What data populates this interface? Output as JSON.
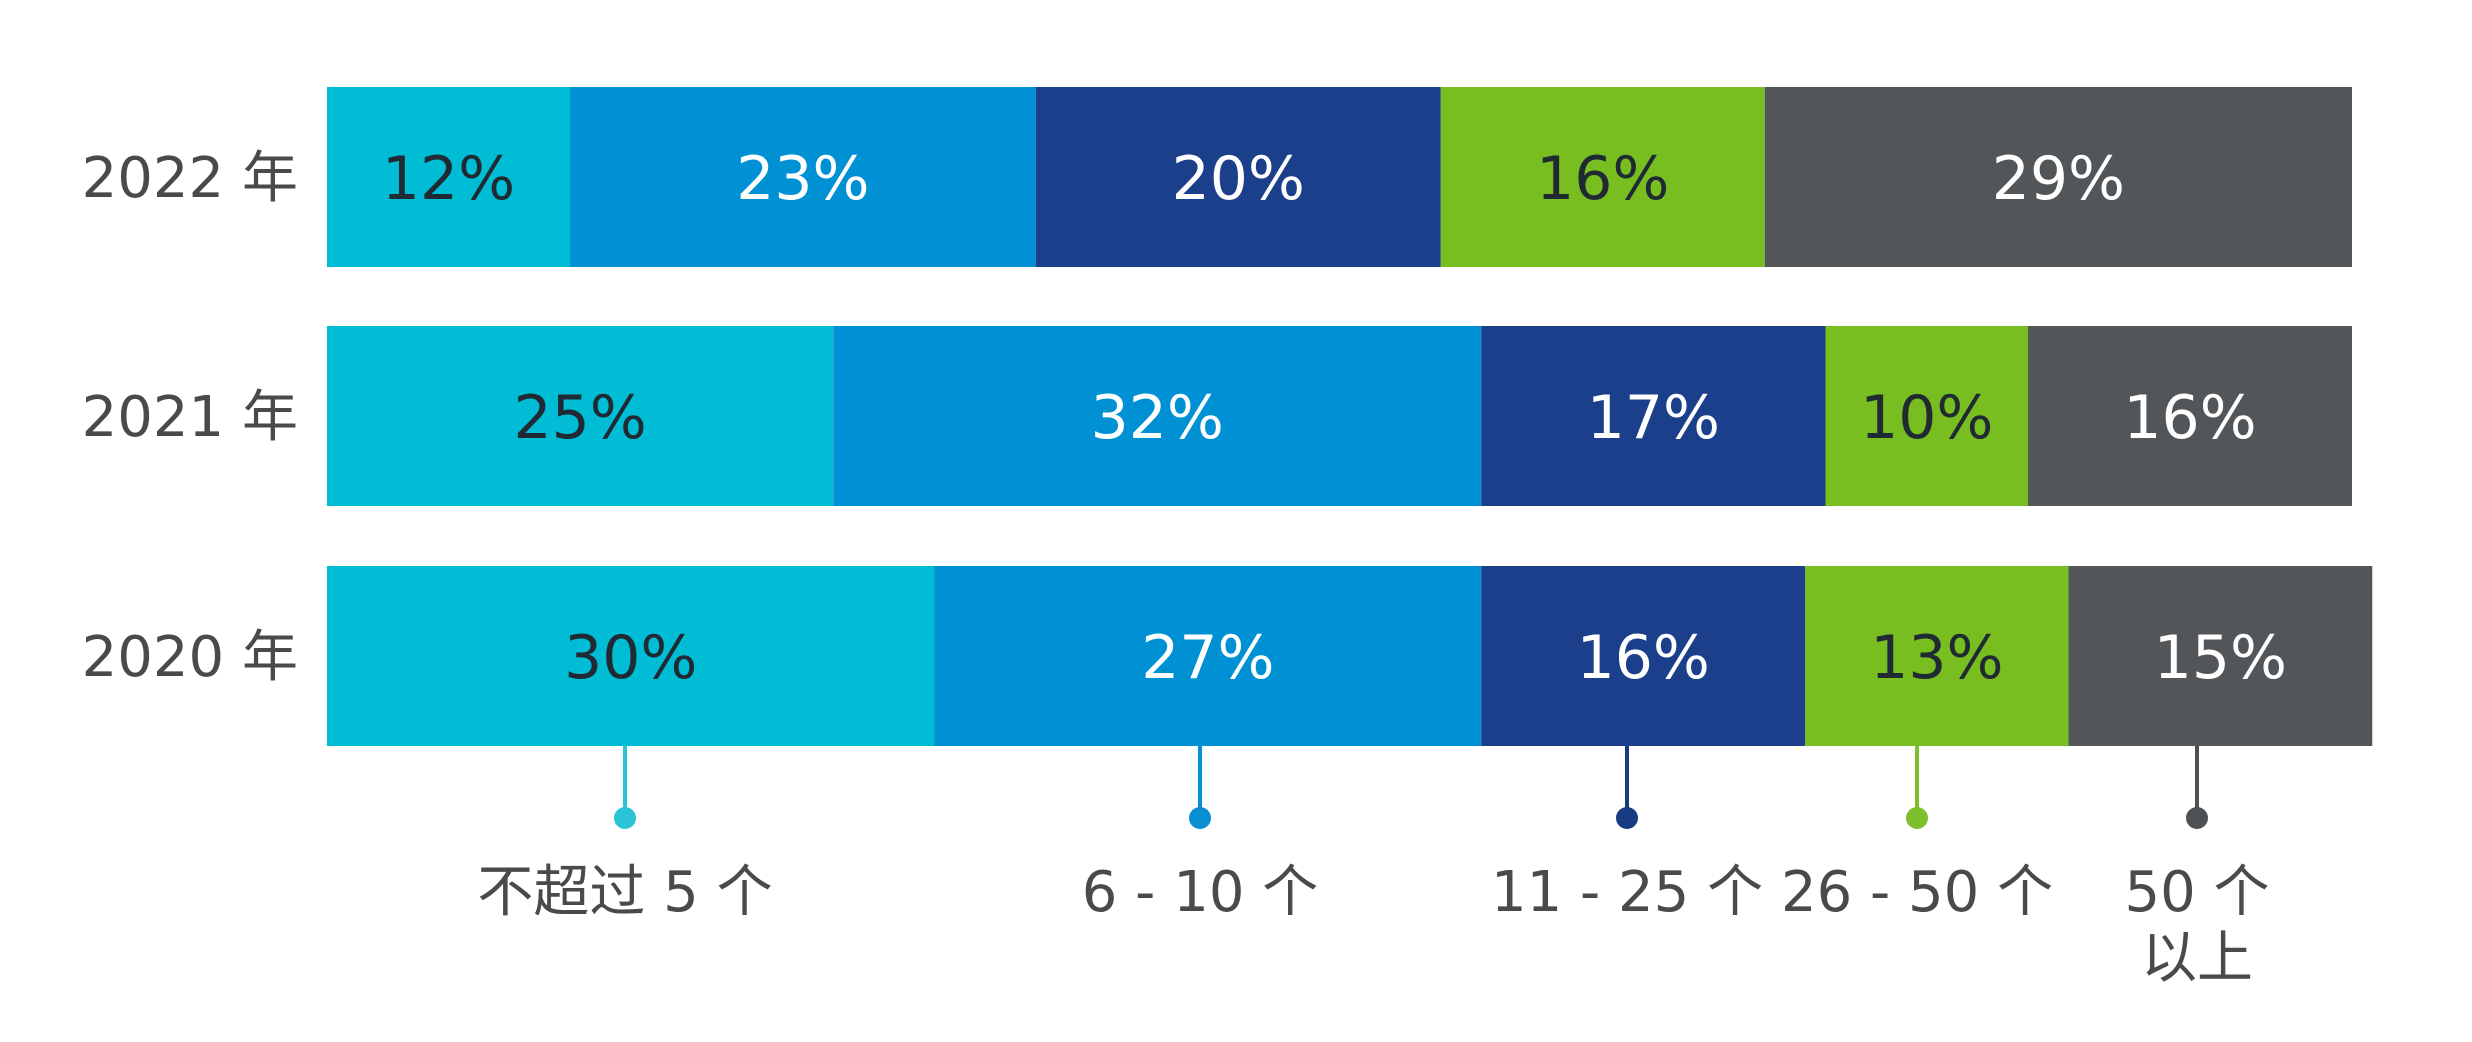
{
  "chart_data": {
    "type": "bar",
    "orientation": "horizontal",
    "stacked": true,
    "categories": [
      "2022 年",
      "2021 年",
      "2020 年"
    ],
    "series": [
      {
        "name": "不超过 5 个",
        "values": [
          12,
          25,
          30
        ],
        "labels": [
          "12%",
          "25%",
          "30%"
        ],
        "color": "#00bcd4",
        "label_color": "#1f2a33",
        "marker_color": "#2bc4d6"
      },
      {
        "name": "6 - 10 个",
        "values": [
          23,
          32,
          27
        ],
        "labels": [
          "23%",
          "32%",
          "27%"
        ],
        "color": "#0091d5",
        "label_color": "#ffffff",
        "marker_color": "#0b8fd3"
      },
      {
        "name": "11 - 25 个",
        "values": [
          20,
          17,
          16
        ],
        "labels": [
          "20%",
          "17%",
          "16%"
        ],
        "color": "#1b3f8a",
        "label_color": "#ffffff",
        "marker_color": "#173b82"
      },
      {
        "name": "26 - 50 个",
        "values": [
          16,
          10,
          13
        ],
        "labels": [
          "16%",
          "10%",
          "13%"
        ],
        "color": "#78be20",
        "label_color": "#1f2a33",
        "marker_color": "#7cc12c"
      },
      {
        "name": "50 个\n以上",
        "values": [
          29,
          16,
          15
        ],
        "labels": [
          "29%",
          "16%",
          "15%"
        ],
        "color": "#525659",
        "label_color": "#ffffff",
        "marker_color": "#4d5154"
      }
    ],
    "xlim": [
      0,
      100
    ],
    "grid": false,
    "legend_position": "bottom"
  }
}
